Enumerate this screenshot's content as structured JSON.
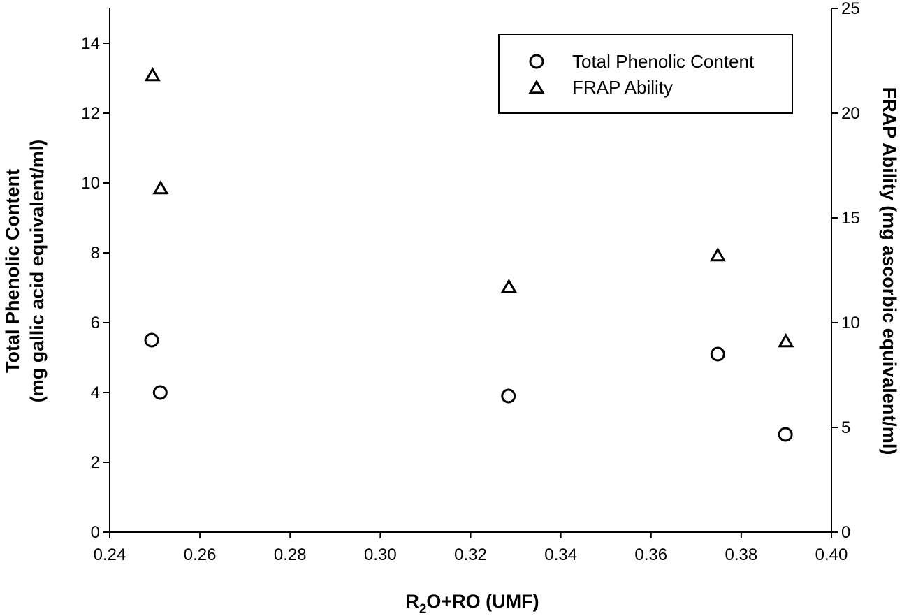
{
  "chart_data": {
    "type": "scatter",
    "title": "",
    "xlabel": {
      "main": "R",
      "sub": "2",
      "rest": "O+RO (UMF)"
    },
    "ylabel_left": [
      "Total Phenolic Content",
      "(mg gallic acid equivalent/ml)"
    ],
    "ylabel_right": [
      "FRAP Ability (mg ascorbic equivalent/ml)"
    ],
    "xlim": [
      0.24,
      0.4
    ],
    "ylim_left": [
      0,
      15
    ],
    "ylim_right": [
      0,
      25
    ],
    "xticks": [
      "0.24",
      "0.26",
      "0.28",
      "0.30",
      "0.32",
      "0.34",
      "0.36",
      "0.38",
      "0.40"
    ],
    "yticks_left": [
      "0",
      "2",
      "4",
      "6",
      "8",
      "10",
      "12",
      "14"
    ],
    "yticks_right": [
      "0",
      "5",
      "10",
      "15",
      "20",
      "25"
    ],
    "grid": false,
    "legend_position": "top-right",
    "series": [
      {
        "name": "Total Phenolic Content",
        "marker": "circle",
        "axis": "left",
        "points": [
          {
            "x": 0.2493,
            "y": 5.5
          },
          {
            "x": 0.2512,
            "y": 4.0
          },
          {
            "x": 0.3284,
            "y": 3.9
          },
          {
            "x": 0.3748,
            "y": 5.1
          },
          {
            "x": 0.3898,
            "y": 2.8
          }
        ]
      },
      {
        "name": "FRAP Ability",
        "marker": "triangle",
        "axis": "right",
        "points": [
          {
            "x": 0.2495,
            "y": 21.8
          },
          {
            "x": 0.2513,
            "y": 16.4
          },
          {
            "x": 0.3285,
            "y": 11.7
          },
          {
            "x": 0.3748,
            "y": 13.2
          },
          {
            "x": 0.3899,
            "y": 9.1
          }
        ]
      }
    ]
  }
}
